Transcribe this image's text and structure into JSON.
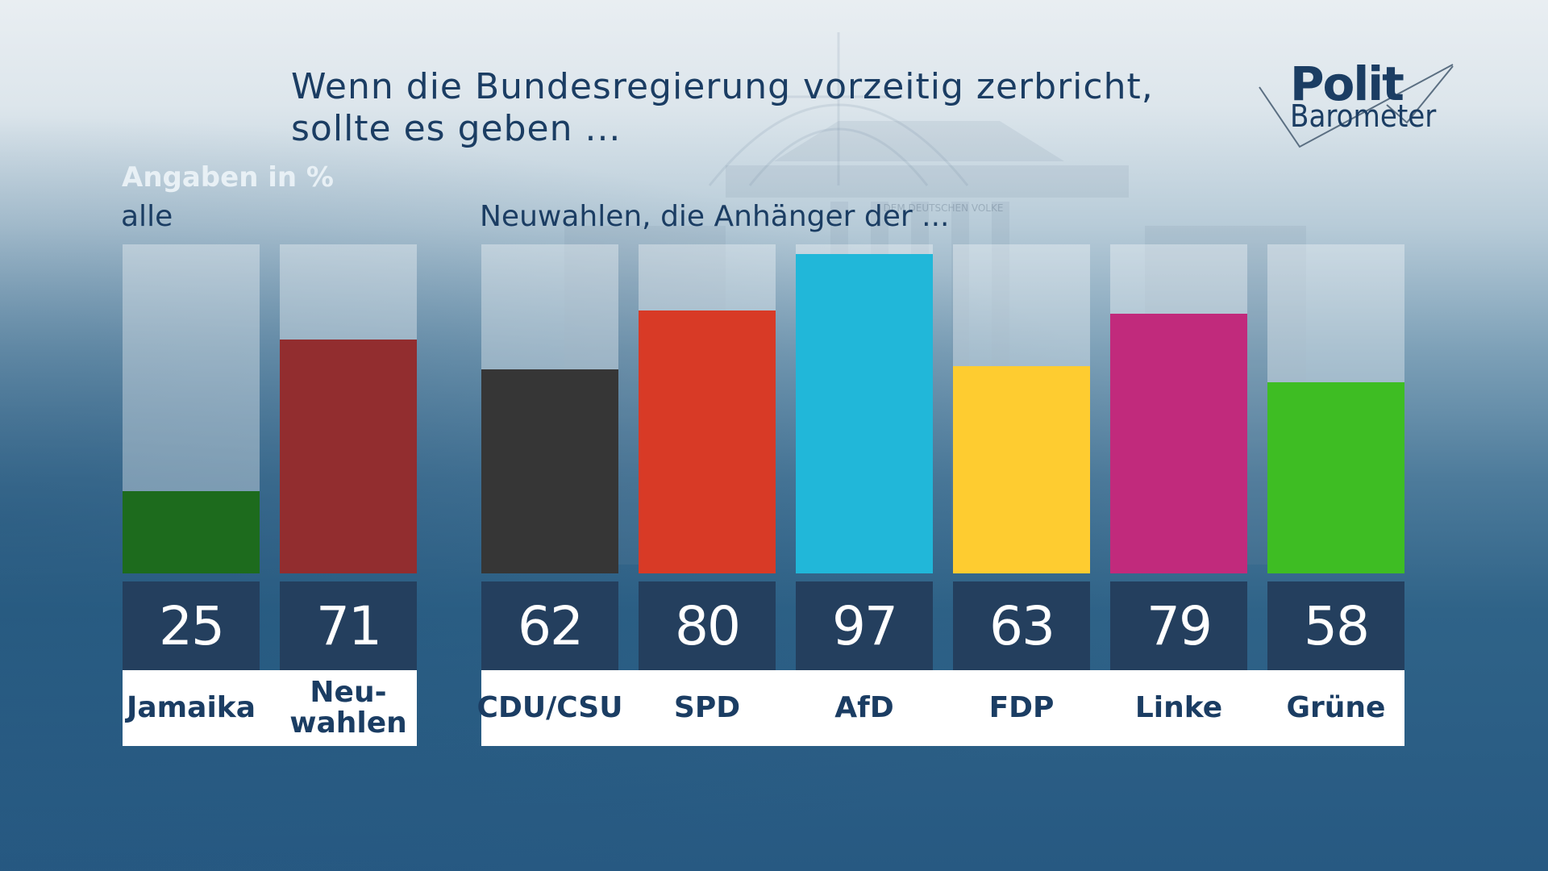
{
  "title": {
    "line1": "Wenn die Bundesregierung vorzeitig zerbricht,",
    "line2": "sollte es geben ..."
  },
  "logo": {
    "line1": "Polit",
    "line2": "Barometer"
  },
  "units_label": "Angaben in %",
  "colors": {
    "Jamaika": "#1d6b1d",
    "Neuwahlen": "#922d2f",
    "CDU/CSU": "#363636",
    "SPD": "#d83a26",
    "AfD": "#21b7d9",
    "FDP": "#fecc30",
    "Linke": "#c12a7c",
    "Grüne": "#3ebd23"
  },
  "chart_data": [
    {
      "type": "bar",
      "title": "alle",
      "categories": [
        "Jamaika",
        "Neu-\nwahlen"
      ],
      "values": [
        25,
        71
      ],
      "ylim": [
        0,
        100
      ],
      "unit": "%"
    },
    {
      "type": "bar",
      "title": "Neuwahlen, die Anhänger der ...",
      "categories": [
        "CDU/CSU",
        "SPD",
        "AfD",
        "FDP",
        "Linke",
        "Grüne"
      ],
      "values": [
        62,
        80,
        97,
        63,
        79,
        58
      ],
      "ylim": [
        0,
        100
      ],
      "unit": "%"
    }
  ]
}
